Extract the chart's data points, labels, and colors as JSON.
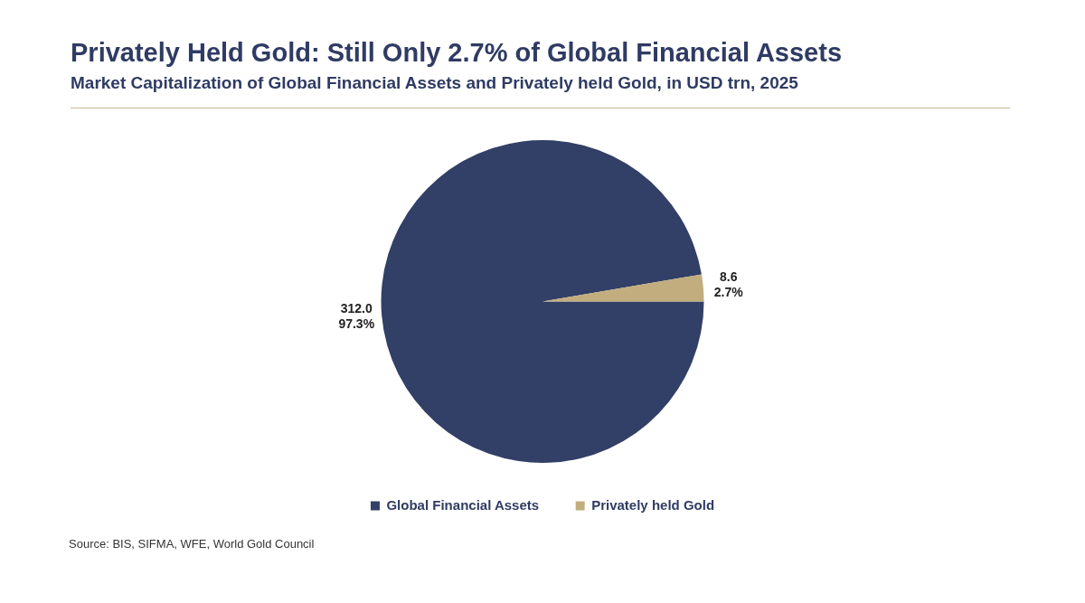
{
  "chart_data": {
    "type": "pie",
    "title": "Privately Held Gold: Still Only 2.7% of Global Financial Assets",
    "subtitle": "Market Capitalization of Global Financial Assets and Privately held Gold, in USD trn, 2025",
    "categories": [
      "Global Financial Assets",
      "Privately held Gold"
    ],
    "values": [
      312.0,
      8.6
    ],
    "colors": [
      "#323f66",
      "#c2ad7f"
    ],
    "value_labels": [
      "312.0\n97.3%",
      "8.6\n2.7%"
    ],
    "legend": "bottom",
    "annotations": [
      "Source: BIS, SIFMA, WFE, World Gold Council"
    ]
  }
}
